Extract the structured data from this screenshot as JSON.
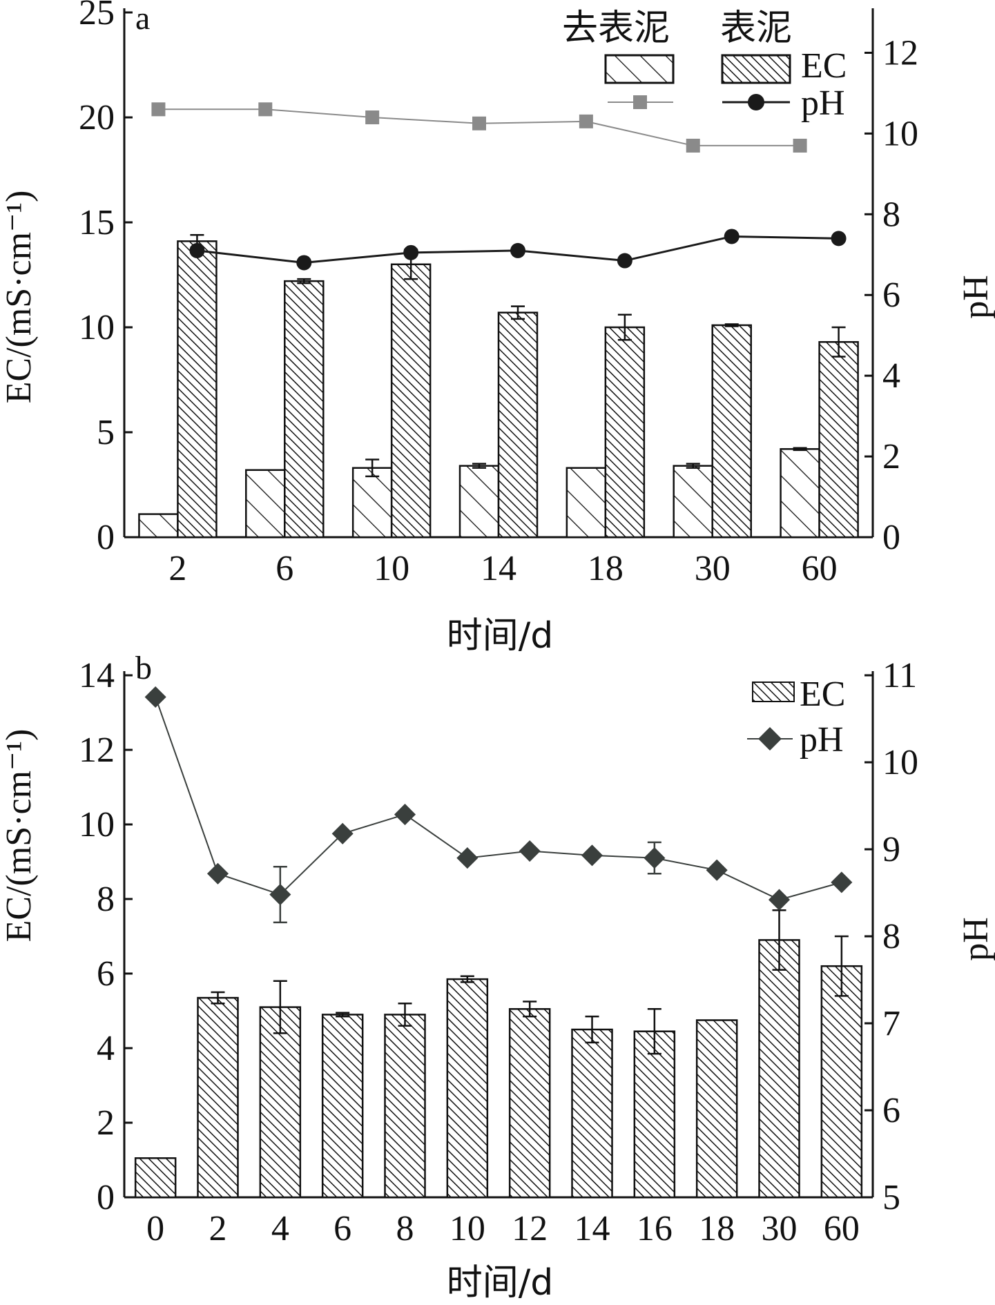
{
  "chart_data": [
    {
      "type": "bar",
      "panel_label": "a",
      "categories": [
        "2",
        "6",
        "10",
        "14",
        "18",
        "30",
        "60"
      ],
      "xlabel": "时间/d",
      "ylabel": "EC/(mS·cm⁻¹)",
      "y2label": "pH",
      "ylim": [
        0,
        25
      ],
      "y2lim": [
        0,
        13
      ],
      "yticks": [
        "0",
        "5",
        "10",
        "15",
        "20",
        "25"
      ],
      "y2ticks": [
        "0",
        "2",
        "4",
        "6",
        "8",
        "10",
        "12"
      ],
      "legend_headers": [
        "去表泥",
        "表泥"
      ],
      "legend_rows": [
        "EC",
        "pH"
      ],
      "legend_position": "top-right",
      "grid": false,
      "series": [
        {
          "name": "去表泥",
          "kind": "bar",
          "hatch": "sparse",
          "values": [
            1.1,
            3.2,
            3.3,
            3.4,
            3.3,
            3.4,
            4.2
          ],
          "errors": [
            0,
            0,
            0.4,
            0.1,
            0,
            0.1,
            0.05
          ]
        },
        {
          "name": "表泥",
          "kind": "bar",
          "hatch": "dense",
          "values": [
            14.1,
            12.2,
            13.0,
            10.7,
            10.0,
            10.1,
            9.3
          ],
          "errors": [
            0.3,
            0.1,
            0.7,
            0.3,
            0.6,
            0.05,
            0.7
          ]
        },
        {
          "name": "去表泥",
          "kind": "line",
          "axis": "y2",
          "marker": "square",
          "color": "#8a8a8a",
          "values": [
            10.6,
            10.6,
            10.4,
            10.25,
            10.3,
            9.7,
            9.7
          ]
        },
        {
          "name": "表泥",
          "kind": "line",
          "axis": "y2",
          "marker": "circle",
          "color": "#1a1a1a",
          "values": [
            7.1,
            6.8,
            7.05,
            7.1,
            6.85,
            7.45,
            7.4
          ]
        }
      ]
    },
    {
      "type": "bar",
      "panel_label": "b",
      "categories": [
        "0",
        "2",
        "4",
        "6",
        "8",
        "10",
        "12",
        "14",
        "16",
        "18",
        "30",
        "60"
      ],
      "xlabel": "时间/d",
      "ylabel": "EC/(mS·cm⁻¹)",
      "y2label": "pH",
      "ylim": [
        0,
        14
      ],
      "y2lim": [
        5,
        11
      ],
      "yticks": [
        "0",
        "2",
        "4",
        "6",
        "8",
        "10",
        "12",
        "14"
      ],
      "y2ticks": [
        "5",
        "6",
        "7",
        "8",
        "9",
        "10",
        "11"
      ],
      "legend_rows": [
        "EC",
        "pH"
      ],
      "legend_position": "top-right",
      "grid": false,
      "series": [
        {
          "name": "EC",
          "kind": "bar",
          "hatch": "dense",
          "values": [
            1.05,
            5.35,
            5.1,
            4.9,
            4.9,
            5.85,
            5.05,
            4.5,
            4.45,
            4.75,
            6.9,
            6.2
          ],
          "errors": [
            0,
            0.15,
            0.7,
            0.05,
            0.3,
            0.08,
            0.2,
            0.35,
            0.6,
            0,
            0.8,
            0.8
          ]
        },
        {
          "name": "pH",
          "kind": "line",
          "axis": "y2",
          "marker": "diamond",
          "color": "#3a3f3d",
          "values": [
            10.75,
            8.72,
            8.48,
            9.18,
            9.4,
            8.9,
            8.98,
            8.93,
            8.9,
            8.76,
            8.42,
            8.62
          ],
          "errors": [
            0,
            0,
            0.32,
            0,
            0,
            0,
            0,
            0,
            0.18,
            0,
            0,
            0
          ]
        }
      ]
    }
  ]
}
